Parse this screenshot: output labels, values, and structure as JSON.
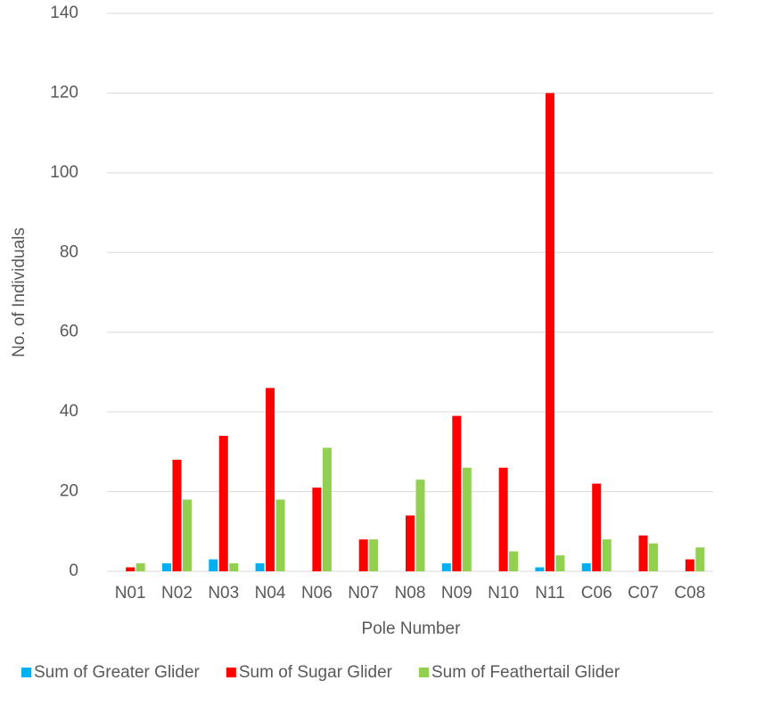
{
  "chart_data": {
    "type": "bar",
    "x_label": "Pole Number",
    "y_label": "No. of Individuals",
    "categories": [
      "N01",
      "N02",
      "N03",
      "N04",
      "N06",
      "N07",
      "N08",
      "N09",
      "N10",
      "N11",
      "C06",
      "C07",
      "C08"
    ],
    "series": [
      {
        "name": "Sum of Greater Glider",
        "color": "#00b0f0",
        "values": [
          0,
          2,
          3,
          2,
          0,
          0,
          0,
          2,
          0,
          1,
          2,
          0,
          0
        ]
      },
      {
        "name": "Sum of Sugar Glider",
        "color": "#ff0000",
        "values": [
          1,
          28,
          34,
          46,
          21,
          8,
          14,
          39,
          26,
          120,
          22,
          9,
          3
        ]
      },
      {
        "name": "Sum of Feathertail Glider",
        "color": "#92d050",
        "values": [
          2,
          18,
          2,
          18,
          31,
          8,
          23,
          26,
          5,
          4,
          8,
          7,
          6
        ]
      }
    ],
    "ylim": [
      0,
      140
    ],
    "yticks": [
      0,
      20,
      40,
      60,
      80,
      100,
      120,
      140
    ],
    "grid": true,
    "legend": "bottom"
  }
}
